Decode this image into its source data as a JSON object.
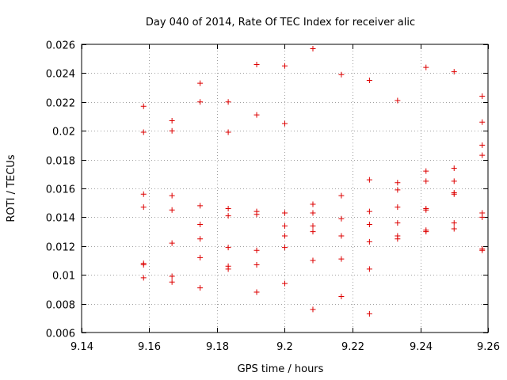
{
  "chart_data": {
    "type": "scatter",
    "title": "Day 040 of 2014, Rate Of TEC Index for receiver alic",
    "xlabel": "GPS time / hours",
    "ylabel": "ROTI / TECUs",
    "xlim": [
      9.14,
      9.26
    ],
    "ylim": [
      0.006,
      0.026
    ],
    "xticks": [
      9.14,
      9.16,
      9.18,
      9.2,
      9.22,
      9.24,
      9.26
    ],
    "xtick_labels": [
      "9.14",
      "9.16",
      "9.18",
      "9.2",
      "9.22",
      "9.24",
      "9.26"
    ],
    "yticks": [
      0.006,
      0.008,
      0.01,
      0.012,
      0.014,
      0.016,
      0.018,
      0.02,
      0.022,
      0.024,
      0.026
    ],
    "ytick_labels": [
      "0.006",
      "0.008",
      "0.01",
      "0.012",
      "0.014",
      "0.016",
      "0.018",
      "0.02",
      "0.022",
      "0.024",
      "0.026"
    ],
    "grid": true,
    "marker": "+",
    "color": "#dd0000",
    "points": [
      [
        9.1583,
        0.0217
      ],
      [
        9.1583,
        0.0199
      ],
      [
        9.1583,
        0.0156
      ],
      [
        9.1583,
        0.0147
      ],
      [
        9.1583,
        0.0108
      ],
      [
        9.1583,
        0.0107
      ],
      [
        9.1583,
        0.0098
      ],
      [
        9.1667,
        0.0207
      ],
      [
        9.1667,
        0.02
      ],
      [
        9.1667,
        0.0155
      ],
      [
        9.1667,
        0.0145
      ],
      [
        9.1667,
        0.0122
      ],
      [
        9.1667,
        0.0099
      ],
      [
        9.1667,
        0.0095
      ],
      [
        9.175,
        0.0233
      ],
      [
        9.175,
        0.022
      ],
      [
        9.175,
        0.0148
      ],
      [
        9.175,
        0.0135
      ],
      [
        9.175,
        0.0125
      ],
      [
        9.175,
        0.0112
      ],
      [
        9.175,
        0.0091
      ],
      [
        9.1833,
        0.022
      ],
      [
        9.1833,
        0.0199
      ],
      [
        9.1833,
        0.0146
      ],
      [
        9.1833,
        0.0141
      ],
      [
        9.1833,
        0.0119
      ],
      [
        9.1833,
        0.0106
      ],
      [
        9.1833,
        0.0104
      ],
      [
        9.1917,
        0.0246
      ],
      [
        9.1917,
        0.0211
      ],
      [
        9.1917,
        0.0144
      ],
      [
        9.1917,
        0.0142
      ],
      [
        9.1917,
        0.0117
      ],
      [
        9.1917,
        0.0107
      ],
      [
        9.1917,
        0.0088
      ],
      [
        9.2,
        0.0245
      ],
      [
        9.2,
        0.0205
      ],
      [
        9.2,
        0.0143
      ],
      [
        9.2,
        0.0134
      ],
      [
        9.2,
        0.0127
      ],
      [
        9.2,
        0.0119
      ],
      [
        9.2,
        0.0094
      ],
      [
        9.2083,
        0.0257
      ],
      [
        9.2083,
        0.0149
      ],
      [
        9.2083,
        0.0143
      ],
      [
        9.2083,
        0.0134
      ],
      [
        9.2083,
        0.013
      ],
      [
        9.2083,
        0.011
      ],
      [
        9.2083,
        0.0076
      ],
      [
        9.2167,
        0.0239
      ],
      [
        9.2167,
        0.0155
      ],
      [
        9.2167,
        0.0139
      ],
      [
        9.2167,
        0.0127
      ],
      [
        9.2167,
        0.0111
      ],
      [
        9.2167,
        0.0085
      ],
      [
        9.225,
        0.0235
      ],
      [
        9.225,
        0.0166
      ],
      [
        9.225,
        0.0144
      ],
      [
        9.225,
        0.0135
      ],
      [
        9.225,
        0.0123
      ],
      [
        9.225,
        0.0104
      ],
      [
        9.225,
        0.0073
      ],
      [
        9.2333,
        0.0221
      ],
      [
        9.2333,
        0.0164
      ],
      [
        9.2333,
        0.0159
      ],
      [
        9.2333,
        0.0147
      ],
      [
        9.2333,
        0.0136
      ],
      [
        9.2333,
        0.0127
      ],
      [
        9.2333,
        0.0125
      ],
      [
        9.2417,
        0.0244
      ],
      [
        9.2417,
        0.0172
      ],
      [
        9.2417,
        0.0165
      ],
      [
        9.2417,
        0.0146
      ],
      [
        9.2417,
        0.0145
      ],
      [
        9.2417,
        0.0131
      ],
      [
        9.2417,
        0.013
      ],
      [
        9.25,
        0.0241
      ],
      [
        9.25,
        0.0174
      ],
      [
        9.25,
        0.0165
      ],
      [
        9.25,
        0.0157
      ],
      [
        9.25,
        0.0156
      ],
      [
        9.25,
        0.0136
      ],
      [
        9.25,
        0.0132
      ],
      [
        9.2583,
        0.0224
      ],
      [
        9.2583,
        0.0206
      ],
      [
        9.2583,
        0.019
      ],
      [
        9.2583,
        0.0183
      ],
      [
        9.2583,
        0.0143
      ],
      [
        9.2583,
        0.014
      ],
      [
        9.2583,
        0.0118
      ],
      [
        9.2583,
        0.0117
      ]
    ]
  }
}
